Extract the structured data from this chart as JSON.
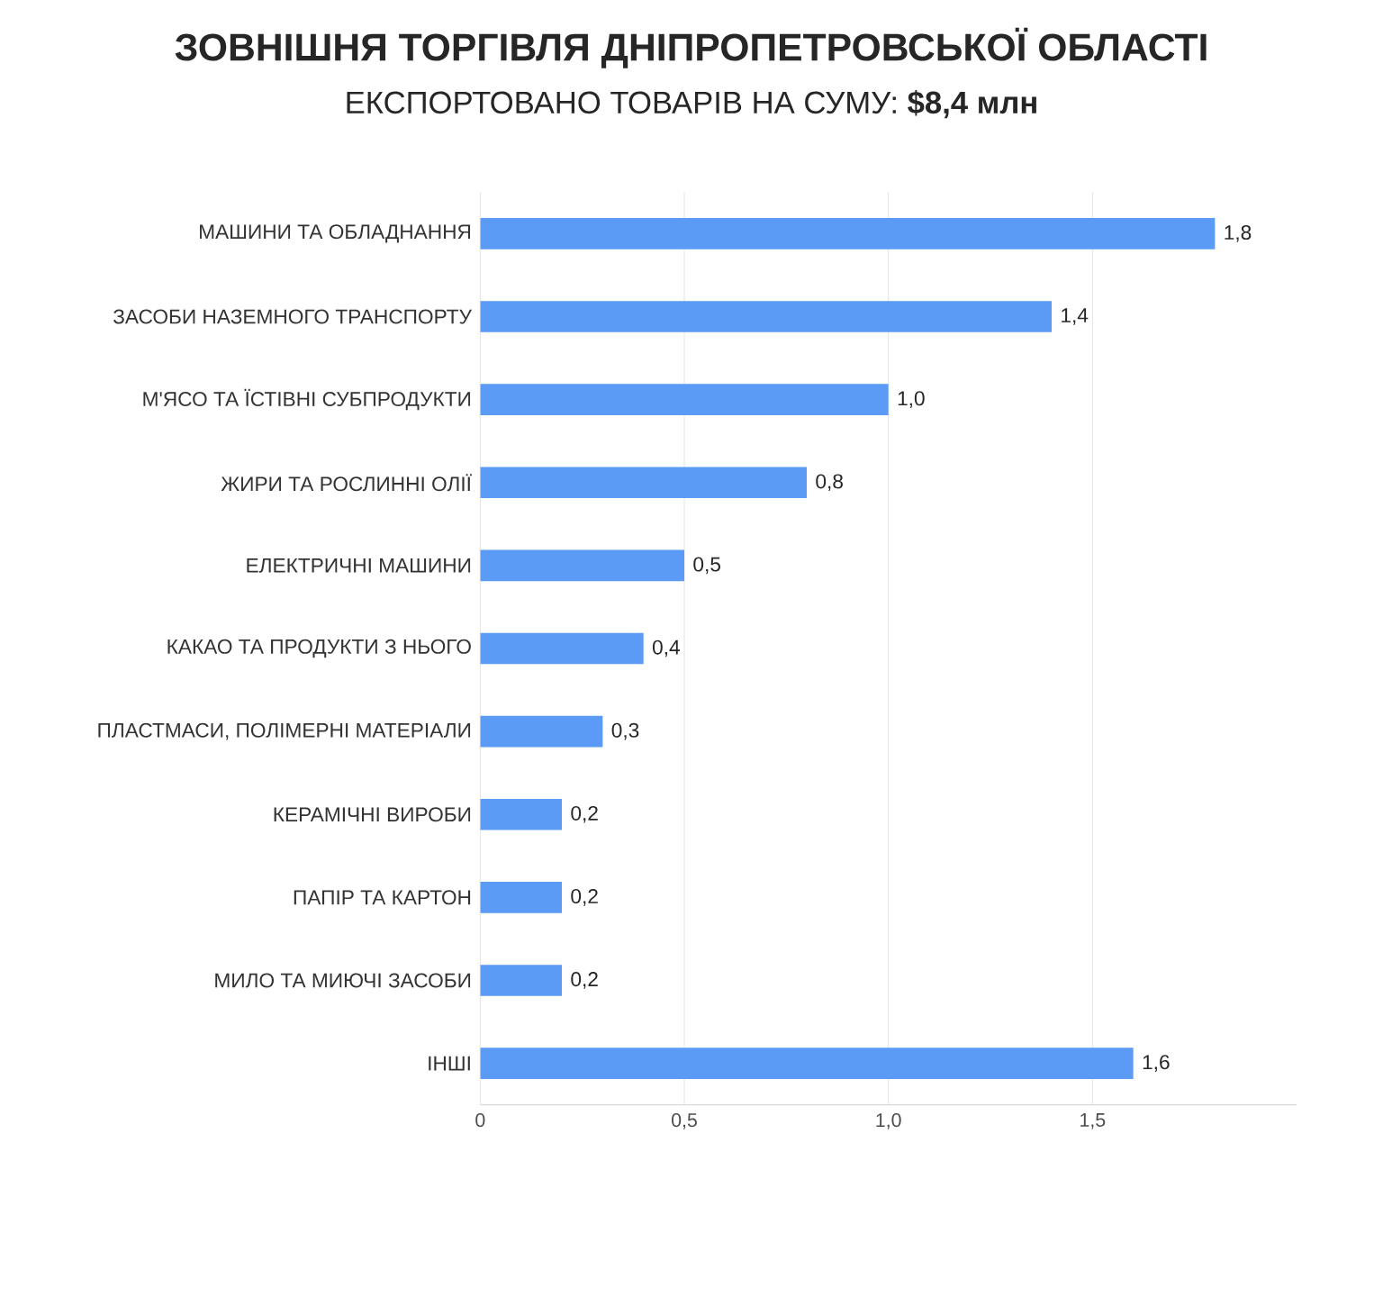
{
  "chart_data": {
    "type": "bar",
    "orientation": "horizontal",
    "title": "ЗОВНІШНЯ ТОРГІВЛЯ ДНІПРОПЕТРОВСЬКОЇ ОБЛАСТІ",
    "subtitle": "ЕКСПОРТОВАНО ТОВАРІВ НА СУМУ:  **$8,4 млн**",
    "categories": [
      "МАШИНИ ТА ОБЛАДНАННЯ",
      "ЗАСОБИ НАЗЕМНОГО ТРАНСПОРТУ",
      "М'ЯСО ТА ЇСТІВНІ СУБПРОДУКТИ",
      "ЖИРИ ТА РОСЛИННІ ОЛІЇ",
      "ЕЛЕКТРИЧНІ МАШИНИ",
      "КАКАО ТА ПРОДУКТИ З НЬОГО",
      "ПЛАСТМАСИ, ПОЛІМЕРНІ МАТЕРІАЛИ",
      "КЕРАМІЧНІ ВИРОБИ",
      "ПАПІР ТА КАРТОН",
      "МИЛО ТА МИЮЧІ ЗАСОБИ",
      "ІНШІ"
    ],
    "values": [
      1.8,
      1.4,
      1.0,
      0.8,
      0.5,
      0.4,
      0.3,
      0.2,
      0.2,
      0.2,
      1.6
    ],
    "value_labels": [
      "1,8",
      "1,4",
      "1,0",
      "0,8",
      "0,5",
      "0,4",
      "0,3",
      "0,2",
      "0,2",
      "0,2",
      "1,6"
    ],
    "color": "#5b9af5",
    "xlim": [
      0,
      2
    ],
    "xticks": [
      0,
      {
        "value": 0.5,
        "label": "0,5"
      },
      {
        "value": 1.0,
        "label": "1,0"
      },
      {
        "value": 1.5,
        "label": "1,5"
      }
    ],
    "grid": "x"
  }
}
